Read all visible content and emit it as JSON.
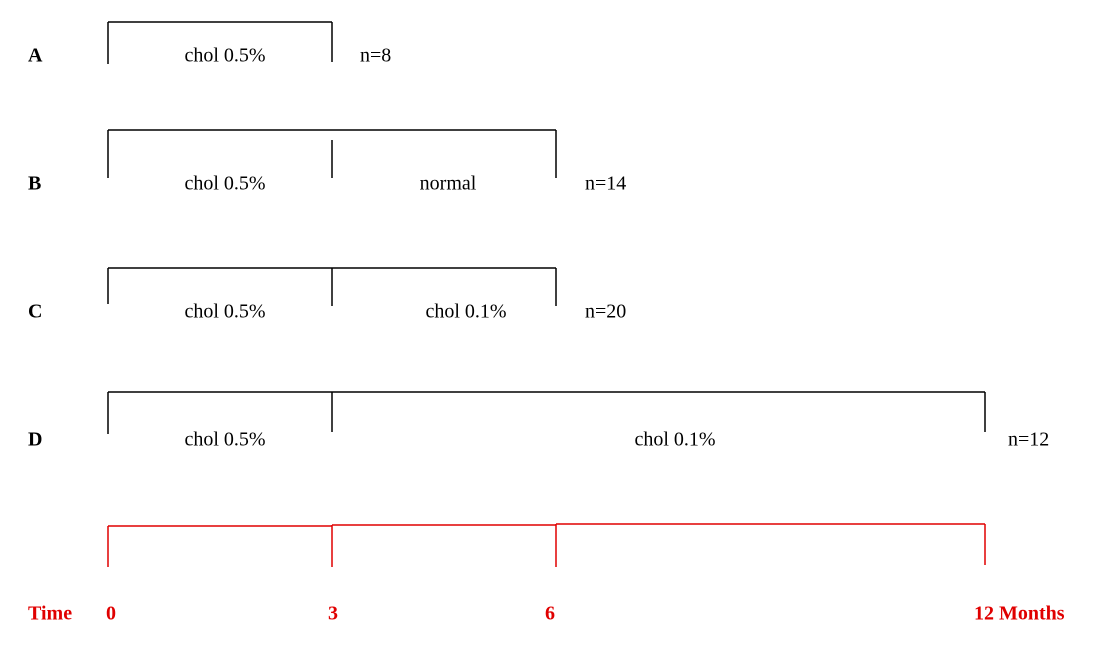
{
  "groups": [
    {
      "label": "A",
      "segments": [
        "chol 0.5%"
      ],
      "n": "n=8"
    },
    {
      "label": "B",
      "segments": [
        "chol 0.5%",
        "normal"
      ],
      "n": "n=14"
    },
    {
      "label": "C",
      "segments": [
        "chol 0.5%",
        "chol 0.1%"
      ],
      "n": "n=20"
    },
    {
      "label": "D",
      "segments": [
        "chol 0.5%",
        "chol 0.1%"
      ],
      "n": "n=12"
    }
  ],
  "timeline": {
    "label": "Time",
    "ticks": [
      "0",
      "3",
      "6",
      "12 Months"
    ]
  }
}
